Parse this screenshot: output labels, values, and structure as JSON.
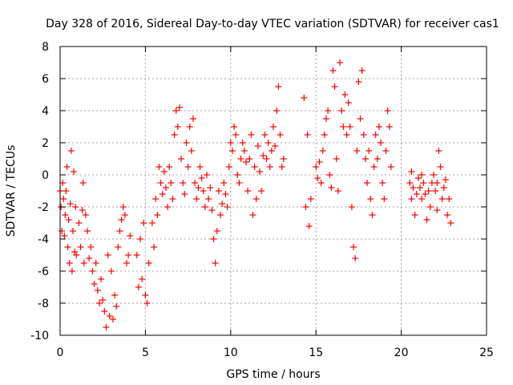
{
  "chart_data": {
    "type": "scatter",
    "title": "Day 328 of 2016, Sidereal Day-to-day VTEC variation (SDTVAR) for receiver cas1",
    "xlabel": "GPS time / hours",
    "ylabel": "SDTVAR / TECUs",
    "xlim": [
      0,
      25
    ],
    "ylim": [
      -10,
      8
    ],
    "xticks": [
      0,
      5,
      10,
      15,
      20,
      25
    ],
    "yticks": [
      -10,
      -8,
      -6,
      -4,
      -2,
      0,
      2,
      4,
      6,
      8
    ],
    "x_tick_labels": [
      "0",
      "5",
      "10",
      "15",
      "20",
      "25"
    ],
    "y_tick_labels": [
      "-10",
      "-8",
      "-6",
      "-4",
      "-2",
      "0",
      "2",
      "4",
      "6",
      "8"
    ],
    "grid": true,
    "legend": "none",
    "marker": "plus",
    "color": "#ff0000",
    "series": [
      {
        "name": "cas1",
        "points": [
          [
            0.0,
            -1.0
          ],
          [
            0.05,
            -2.0
          ],
          [
            0.1,
            -3.5
          ],
          [
            0.15,
            -0.5
          ],
          [
            0.2,
            -1.5
          ],
          [
            0.25,
            -3.8
          ],
          [
            0.3,
            -2.5
          ],
          [
            0.35,
            -1.0
          ],
          [
            0.4,
            0.5
          ],
          [
            0.45,
            -4.5
          ],
          [
            0.5,
            -2.8
          ],
          [
            0.55,
            -5.5
          ],
          [
            0.6,
            -1.8
          ],
          [
            0.65,
            1.5
          ],
          [
            0.7,
            -6.0
          ],
          [
            0.75,
            -3.5
          ],
          [
            0.8,
            0.2
          ],
          [
            0.85,
            -4.8
          ],
          [
            0.9,
            -2.0
          ],
          [
            0.95,
            -5.0
          ],
          [
            1.1,
            -3.0
          ],
          [
            1.2,
            -4.5
          ],
          [
            1.3,
            -2.2
          ],
          [
            1.35,
            -0.5
          ],
          [
            1.4,
            -5.5
          ],
          [
            1.5,
            -2.5
          ],
          [
            1.6,
            -3.5
          ],
          [
            1.7,
            -5.2
          ],
          [
            1.8,
            -4.5
          ],
          [
            1.9,
            -6.0
          ],
          [
            2.0,
            -6.8
          ],
          [
            2.1,
            -5.5
          ],
          [
            2.2,
            -7.2
          ],
          [
            2.3,
            -8.0
          ],
          [
            2.4,
            -6.5
          ],
          [
            2.5,
            -7.8
          ],
          [
            2.6,
            -8.5
          ],
          [
            2.7,
            -9.5
          ],
          [
            2.8,
            -5.0
          ],
          [
            2.9,
            -8.8
          ],
          [
            3.0,
            -6.0
          ],
          [
            3.1,
            -9.0
          ],
          [
            3.2,
            -7.5
          ],
          [
            3.3,
            -8.2
          ],
          [
            3.4,
            -4.5
          ],
          [
            3.5,
            -3.5
          ],
          [
            3.6,
            -2.8
          ],
          [
            3.7,
            -2.0
          ],
          [
            3.8,
            -2.5
          ],
          [
            3.9,
            -5.5
          ],
          [
            4.0,
            -5.0
          ],
          [
            4.1,
            -3.8
          ],
          [
            4.5,
            -5.0
          ],
          [
            4.6,
            -7.0
          ],
          [
            4.7,
            -4.0
          ],
          [
            4.8,
            -6.5
          ],
          [
            4.9,
            -3.0
          ],
          [
            5.0,
            -7.5
          ],
          [
            5.1,
            -8.0
          ],
          [
            5.2,
            -5.5
          ],
          [
            5.4,
            -3.0
          ],
          [
            5.5,
            -4.5
          ],
          [
            5.6,
            -1.5
          ],
          [
            5.7,
            -2.5
          ],
          [
            5.8,
            0.5
          ],
          [
            5.9,
            -0.5
          ],
          [
            6.0,
            -1.2
          ],
          [
            6.1,
            0.2
          ],
          [
            6.2,
            -0.8
          ],
          [
            6.3,
            -2.0
          ],
          [
            6.4,
            0.5
          ],
          [
            6.5,
            -0.5
          ],
          [
            6.6,
            -1.5
          ],
          [
            6.7,
            2.5
          ],
          [
            6.8,
            4.0
          ],
          [
            6.9,
            3.0
          ],
          [
            7.0,
            4.2
          ],
          [
            7.1,
            1.0
          ],
          [
            7.2,
            -0.5
          ],
          [
            7.3,
            -1.2
          ],
          [
            7.4,
            2.0
          ],
          [
            7.5,
            0.5
          ],
          [
            7.6,
            3.0
          ],
          [
            7.7,
            1.5
          ],
          [
            7.8,
            3.5
          ],
          [
            7.9,
            -0.5
          ],
          [
            8.0,
            -1.5
          ],
          [
            8.1,
            -0.8
          ],
          [
            8.2,
            0.5
          ],
          [
            8.3,
            -0.2
          ],
          [
            8.4,
            -1.0
          ],
          [
            8.5,
            -2.0
          ],
          [
            8.6,
            0.0
          ],
          [
            8.7,
            -1.5
          ],
          [
            8.8,
            -0.8
          ],
          [
            8.9,
            -2.2
          ],
          [
            9.0,
            -4.0
          ],
          [
            9.1,
            -5.5
          ],
          [
            9.2,
            -3.5
          ],
          [
            9.3,
            -1.0
          ],
          [
            9.4,
            -2.5
          ],
          [
            9.5,
            -1.8
          ],
          [
            9.6,
            -0.5
          ],
          [
            9.7,
            -1.2
          ],
          [
            9.8,
            -2.0
          ],
          [
            9.9,
            0.5
          ],
          [
            10.0,
            2.0
          ],
          [
            10.1,
            1.5
          ],
          [
            10.2,
            3.0
          ],
          [
            10.3,
            2.5
          ],
          [
            10.4,
            0.0
          ],
          [
            10.5,
            -0.5
          ],
          [
            10.6,
            1.0
          ],
          [
            10.7,
            2.0
          ],
          [
            10.8,
            1.5
          ],
          [
            10.9,
            0.8
          ],
          [
            11.0,
            -1.0
          ],
          [
            11.1,
            1.0
          ],
          [
            11.2,
            2.5
          ],
          [
            11.3,
            -2.5
          ],
          [
            11.4,
            0.5
          ],
          [
            11.5,
            -1.5
          ],
          [
            11.6,
            1.8
          ],
          [
            11.7,
            0.2
          ],
          [
            11.8,
            -1.0
          ],
          [
            11.9,
            1.2
          ],
          [
            12.0,
            2.5
          ],
          [
            12.1,
            1.0
          ],
          [
            12.2,
            2.0
          ],
          [
            12.3,
            0.5
          ],
          [
            12.4,
            1.5
          ],
          [
            12.5,
            3.0
          ],
          [
            12.6,
            1.8
          ],
          [
            12.7,
            4.0
          ],
          [
            12.8,
            5.5
          ],
          [
            12.9,
            2.5
          ],
          [
            13.0,
            0.5
          ],
          [
            13.1,
            1.0
          ],
          [
            14.3,
            4.8
          ],
          [
            14.4,
            -2.0
          ],
          [
            14.5,
            2.5
          ],
          [
            14.6,
            -3.2
          ],
          [
            14.7,
            -1.5
          ],
          [
            15.0,
            0.5
          ],
          [
            15.1,
            -0.2
          ],
          [
            15.2,
            0.8
          ],
          [
            15.3,
            -0.5
          ],
          [
            15.4,
            1.5
          ],
          [
            15.5,
            2.5
          ],
          [
            15.6,
            3.5
          ],
          [
            15.7,
            4.0
          ],
          [
            15.8,
            0.0
          ],
          [
            15.9,
            -0.8
          ],
          [
            16.0,
            6.5
          ],
          [
            16.1,
            5.5
          ],
          [
            16.2,
            1.0
          ],
          [
            16.3,
            -1.0
          ],
          [
            16.4,
            7.0
          ],
          [
            16.5,
            4.0
          ],
          [
            16.6,
            3.0
          ],
          [
            16.7,
            5.0
          ],
          [
            16.8,
            2.5
          ],
          [
            16.9,
            4.5
          ],
          [
            17.0,
            3.0
          ],
          [
            17.1,
            -2.0
          ],
          [
            17.2,
            -4.5
          ],
          [
            17.3,
            -5.2
          ],
          [
            17.4,
            1.5
          ],
          [
            17.5,
            5.8
          ],
          [
            17.6,
            3.5
          ],
          [
            17.7,
            6.5
          ],
          [
            17.8,
            2.5
          ],
          [
            17.9,
            1.0
          ],
          [
            18.0,
            -0.5
          ],
          [
            18.1,
            1.5
          ],
          [
            18.2,
            -1.5
          ],
          [
            18.3,
            -2.5
          ],
          [
            18.4,
            0.5
          ],
          [
            18.5,
            2.5
          ],
          [
            18.6,
            1.0
          ],
          [
            18.7,
            3.0
          ],
          [
            18.8,
            2.0
          ],
          [
            18.9,
            -0.5
          ],
          [
            19.0,
            -1.5
          ],
          [
            19.1,
            1.5
          ],
          [
            19.2,
            4.0
          ],
          [
            19.3,
            3.0
          ],
          [
            19.4,
            0.5
          ],
          [
            20.5,
            -0.5
          ],
          [
            20.6,
            -1.5
          ],
          [
            20.7,
            -0.8
          ],
          [
            20.8,
            -2.5
          ],
          [
            20.9,
            -1.2
          ],
          [
            21.0,
            -0.2
          ],
          [
            21.1,
            -0.8
          ],
          [
            21.2,
            -1.5
          ],
          [
            21.3,
            -0.5
          ],
          [
            21.4,
            -1.2
          ],
          [
            21.5,
            -2.8
          ],
          [
            21.6,
            -1.0
          ],
          [
            21.7,
            -2.0
          ],
          [
            21.8,
            -0.5
          ],
          [
            21.9,
            0.0
          ],
          [
            22.0,
            -1.0
          ],
          [
            22.1,
            -0.5
          ],
          [
            22.2,
            1.5
          ],
          [
            22.3,
            0.5
          ],
          [
            22.4,
            -1.5
          ],
          [
            22.5,
            -0.8
          ],
          [
            22.6,
            -0.3
          ],
          [
            22.7,
            -2.5
          ],
          [
            22.8,
            -1.5
          ],
          [
            22.9,
            -3.0
          ],
          [
            20.6,
            0.2
          ],
          [
            21.2,
            0.0
          ],
          [
            22.1,
            -2.2
          ]
        ]
      }
    ]
  }
}
